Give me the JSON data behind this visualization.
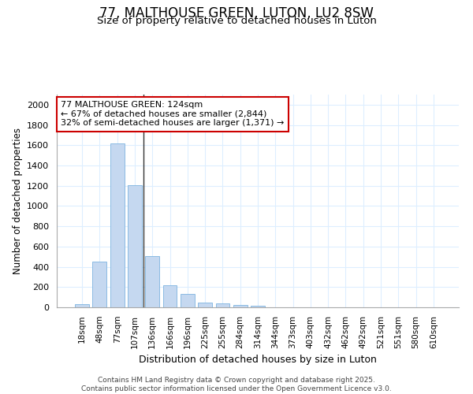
{
  "title": "77, MALTHOUSE GREEN, LUTON, LU2 8SW",
  "subtitle": "Size of property relative to detached houses in Luton",
  "xlabel": "Distribution of detached houses by size in Luton",
  "ylabel": "Number of detached properties",
  "categories": [
    "18sqm",
    "48sqm",
    "77sqm",
    "107sqm",
    "136sqm",
    "166sqm",
    "196sqm",
    "225sqm",
    "255sqm",
    "284sqm",
    "314sqm",
    "344sqm",
    "373sqm",
    "403sqm",
    "432sqm",
    "462sqm",
    "492sqm",
    "521sqm",
    "551sqm",
    "580sqm",
    "610sqm"
  ],
  "values": [
    35,
    455,
    1620,
    1205,
    505,
    220,
    130,
    48,
    40,
    25,
    18,
    0,
    0,
    0,
    0,
    0,
    0,
    0,
    0,
    0,
    0
  ],
  "bar_color": "#c5d8f0",
  "bar_edge_color": "#7db4e0",
  "vline_x": 3.5,
  "vline_color": "#333333",
  "annotation_line1": "77 MALTHOUSE GREEN: 124sqm",
  "annotation_line2": "← 67% of detached houses are smaller (2,844)",
  "annotation_line3": "32% of semi-detached houses are larger (1,371) →",
  "annotation_box_facecolor": "#ffffff",
  "annotation_box_edgecolor": "#cc0000",
  "ylim": [
    0,
    2100
  ],
  "yticks": [
    0,
    200,
    400,
    600,
    800,
    1000,
    1200,
    1400,
    1600,
    1800,
    2000
  ],
  "bg_color": "#ffffff",
  "plot_bg_color": "#ffffff",
  "grid_color": "#ddeeff",
  "footer_line1": "Contains HM Land Registry data © Crown copyright and database right 2025.",
  "footer_line2": "Contains public sector information licensed under the Open Government Licence v3.0."
}
